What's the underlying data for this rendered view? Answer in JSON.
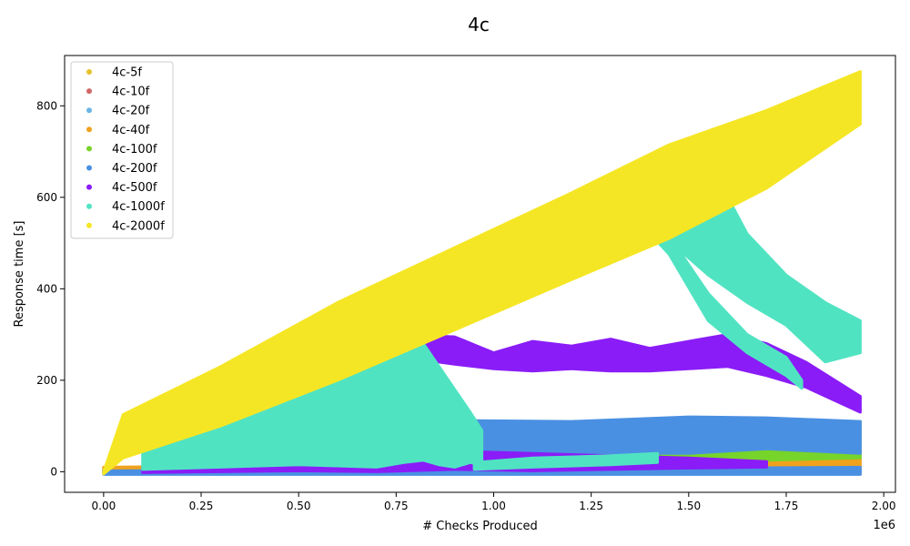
{
  "chart_data": {
    "type": "scatter",
    "title": "4c",
    "xlabel": "# Checks Produced",
    "ylabel": "Response time [s]",
    "x_offset_label": "1e6",
    "xlim": [
      -0.1,
      2.03
    ],
    "ylim": [
      -45,
      910
    ],
    "xticks": [
      0.0,
      0.25,
      0.5,
      0.75,
      1.0,
      1.25,
      1.5,
      1.75,
      2.0
    ],
    "xtick_labels": [
      "0.00",
      "0.25",
      "0.50",
      "0.75",
      "1.00",
      "1.25",
      "1.50",
      "1.75",
      "2.00"
    ],
    "yticks": [
      0,
      200,
      400,
      600,
      800
    ],
    "ytick_labels": [
      "0",
      "200",
      "400",
      "600",
      "800"
    ],
    "grid": false,
    "legend_position": "top-left",
    "series": [
      {
        "name": "4c-5f",
        "color": "#e6c229",
        "bands": [
          {
            "x": [
              0.0,
              0.95
            ],
            "lo": [
              -3,
              -3
            ],
            "hi": [
              3,
              3
            ]
          },
          {
            "x": [
              0.95,
              1.94
            ],
            "lo": [
              -3,
              -3
            ],
            "hi": [
              4,
              4
            ]
          }
        ]
      },
      {
        "name": "4c-10f",
        "color": "#d16666",
        "bands": [
          {
            "x": [
              0.0,
              1.94
            ],
            "lo": [
              -3,
              -3
            ],
            "hi": [
              6,
              6
            ]
          }
        ]
      },
      {
        "name": "4c-20f",
        "color": "#6cb4e4",
        "bands": [
          {
            "x": [
              0.0,
              1.94
            ],
            "lo": [
              -4,
              -4
            ],
            "hi": [
              8,
              8
            ]
          }
        ]
      },
      {
        "name": "4c-40f",
        "color": "#f0a21c",
        "bands": [
          {
            "x": [
              0.0,
              0.5,
              1.0,
              1.5,
              1.94
            ],
            "lo": [
              -2,
              0,
              2,
              4,
              6
            ],
            "hi": [
              10,
              14,
              18,
              22,
              28
            ]
          }
        ]
      },
      {
        "name": "4c-100f",
        "color": "#77d42a",
        "bands": [
          {
            "x": [
              0.3,
              0.6,
              0.9,
              1.2,
              1.5,
              1.7,
              1.94
            ],
            "lo": [
              10,
              20,
              25,
              15,
              20,
              25,
              30
            ],
            "hi": [
              40,
              45,
              70,
              60,
              80,
              100,
              110
            ]
          }
        ]
      },
      {
        "name": "4c-200f",
        "color": "#4a90e2",
        "bands": [
          {
            "x": [
              0.6,
              0.9,
              1.2,
              1.5,
              1.7,
              1.94
            ],
            "lo": [
              30,
              50,
              40,
              40,
              50,
              40
            ],
            "hi": [
              100,
              112,
              110,
              120,
              118,
              110
            ]
          },
          {
            "x": [
              0.0,
              0.5,
              1.0,
              1.5,
              1.94
            ],
            "lo": [
              -6,
              -6,
              -6,
              -6,
              -6
            ],
            "hi": [
              2,
              4,
              6,
              8,
              10
            ]
          }
        ]
      },
      {
        "name": "4c-500f",
        "color": "#8a1cf7",
        "bands": [
          {
            "x": [
              0.77,
              0.9,
              1.0,
              1.1,
              1.2,
              1.3,
              1.4,
              1.5,
              1.6,
              1.7,
              1.8,
              1.94
            ],
            "lo": [
              250,
              235,
              225,
              220,
              225,
              220,
              220,
              225,
              230,
              210,
              185,
              130
            ],
            "hi": [
              300,
              295,
              260,
              285,
              275,
              290,
              270,
              285,
              300,
              280,
              240,
              165
            ]
          },
          {
            "x": [
              0.1,
              0.3,
              0.5,
              0.7,
              0.9,
              1.1,
              1.3,
              1.5,
              1.7
            ],
            "lo": [
              -2,
              0,
              2,
              0,
              5,
              2,
              5,
              8,
              10
            ],
            "hi": [
              10,
              25,
              30,
              40,
              45,
              40,
              35,
              30,
              22
            ]
          }
        ]
      },
      {
        "name": "4c-1000f",
        "color": "#50e3c2",
        "bands": [
          {
            "x": [
              0.1,
              0.3,
              0.5,
              0.7,
              0.77,
              0.82,
              0.86,
              0.9,
              0.94,
              0.97
            ],
            "lo": [
              5,
              10,
              15,
              10,
              20,
              25,
              15,
              10,
              20,
              15
            ],
            "hi": [
              40,
              100,
              190,
              270,
              320,
              280,
              230,
              180,
              130,
              90
            ]
          },
          {
            "x": [
              1.33,
              1.43,
              1.55,
              1.65,
              1.75,
              1.85,
              1.94
            ],
            "lo": [
              580,
              520,
              430,
              370,
              320,
              240,
              260
            ],
            "hi": [
              590,
              640,
              680,
              520,
              430,
              370,
              330
            ]
          },
          {
            "x": [
              1.35,
              1.45,
              1.55,
              1.65,
              1.75,
              1.79
            ],
            "lo": [
              568,
              475,
              330,
              260,
              210,
              182
            ],
            "hi": [
              590,
              515,
              390,
              300,
              250,
              200
            ]
          },
          {
            "x": [
              0.95,
              1.1,
              1.3,
              1.42
            ],
            "lo": [
              5,
              10,
              15,
              20
            ],
            "hi": [
              20,
              30,
              35,
              40
            ]
          }
        ]
      },
      {
        "name": "4c-2000f",
        "color": "#f5e625",
        "bands": [
          {
            "x": [
              0.0,
              0.05,
              0.3,
              0.6,
              0.9,
              1.2,
              1.45,
              1.7,
              1.94
            ],
            "lo": [
              -5,
              30,
              100,
              200,
              310,
              420,
              510,
              620,
              760
            ],
            "hi": [
              0,
              125,
              230,
              370,
              490,
              610,
              715,
              790,
              875
            ]
          },
          {
            "x": [
              0.95,
              1.1,
              1.33
            ],
            "lo": [
              420,
              480,
              580
            ],
            "hi": [
              440,
              510,
              590
            ]
          }
        ]
      }
    ]
  }
}
